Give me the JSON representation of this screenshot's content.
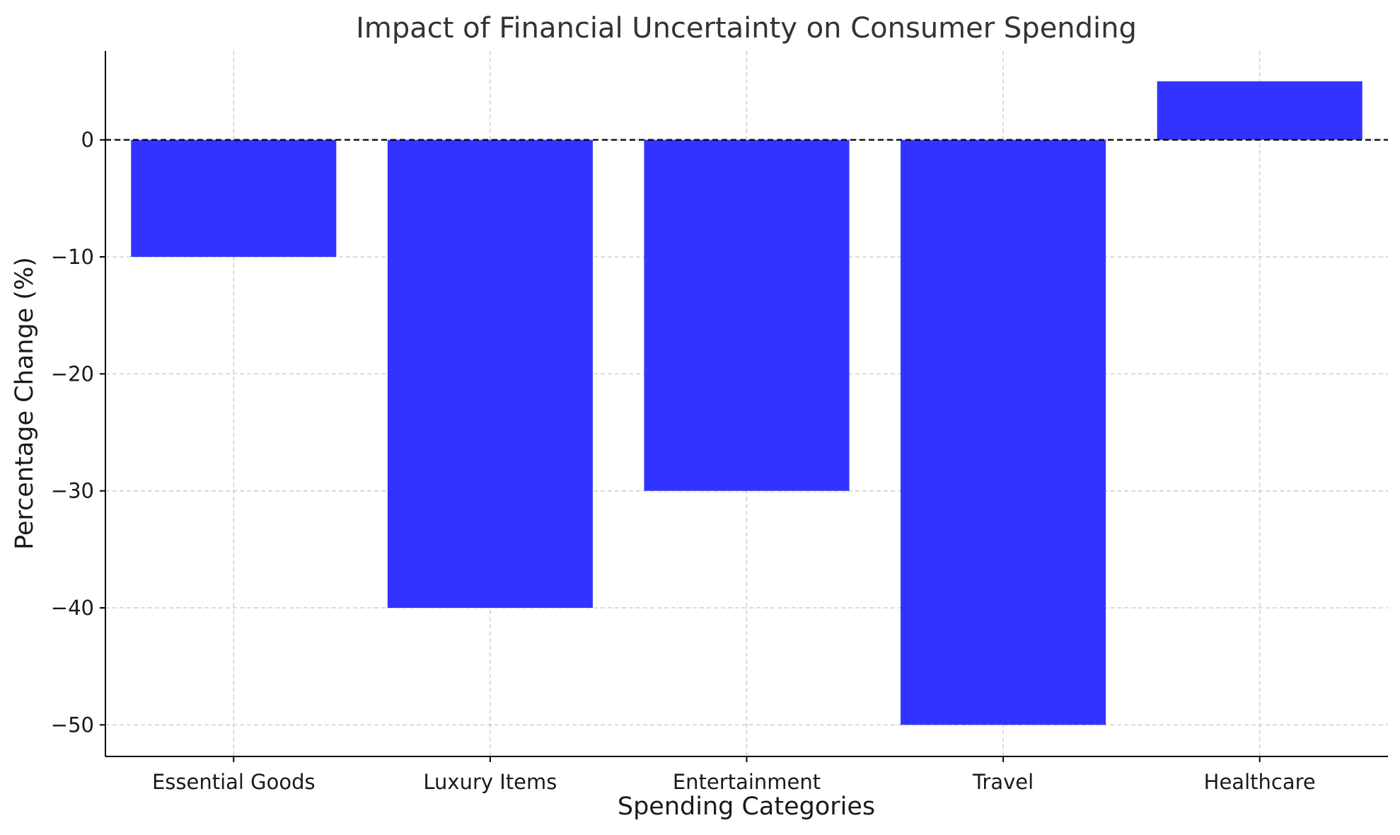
{
  "chart_data": {
    "type": "bar",
    "title": "Impact of Financial Uncertainty on Consumer Spending",
    "xlabel": "Spending Categories",
    "ylabel": "Percentage Change (%)",
    "categories": [
      "Essential Goods",
      "Luxury Items",
      "Entertainment",
      "Travel",
      "Healthcare"
    ],
    "values": [
      -10,
      -40,
      -30,
      -50,
      5
    ],
    "ylim": [
      -52.7,
      7.6
    ],
    "yticks": [
      0,
      -10,
      -20,
      -30,
      -40,
      -50
    ],
    "ytick_labels": [
      "0",
      "−10",
      "−20",
      "−30",
      "−40",
      "−50"
    ],
    "grid": true,
    "legend": "none",
    "bar_color": "#3333ff",
    "reference_line": {
      "y": 0,
      "style": "dashed",
      "color": "#000000"
    }
  }
}
